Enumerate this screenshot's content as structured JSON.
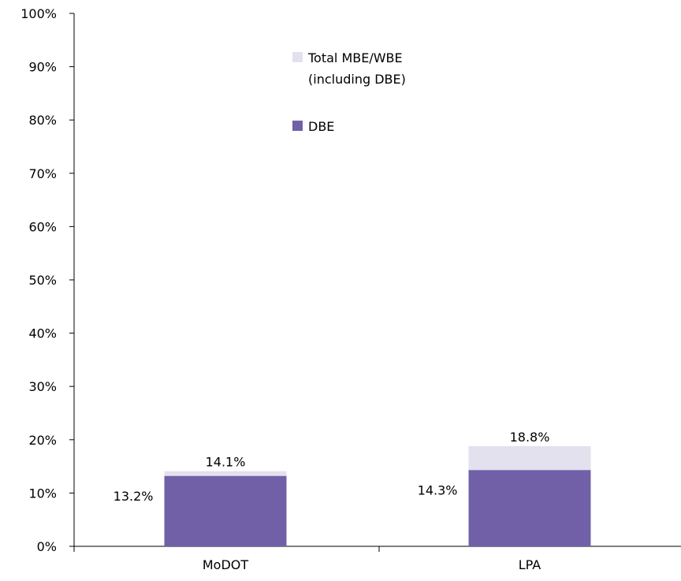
{
  "chart_data": {
    "type": "bar",
    "stacked": "overlay",
    "categories": [
      "MoDOT",
      "LPA"
    ],
    "series": [
      {
        "name": "Total MBE/WBE (including DBE)",
        "legend_lines": [
          "Total MBE/WBE",
          "(including DBE)"
        ],
        "values": [
          14.1,
          18.8
        ],
        "value_labels": [
          "14.1%",
          "18.8%"
        ],
        "color": "#e3e1ee"
      },
      {
        "name": "DBE",
        "legend_lines": [
          "DBE"
        ],
        "values": [
          13.2,
          14.3
        ],
        "value_labels": [
          "13.2%",
          "14.3%"
        ],
        "color": "#7160a8"
      }
    ],
    "y_ticks": [
      "0%",
      "10%",
      "20%",
      "30%",
      "40%",
      "50%",
      "60%",
      "70%",
      "80%",
      "90%",
      "100%"
    ],
    "ylim": [
      0,
      100
    ],
    "legend_position": "top-center",
    "grid": false
  }
}
